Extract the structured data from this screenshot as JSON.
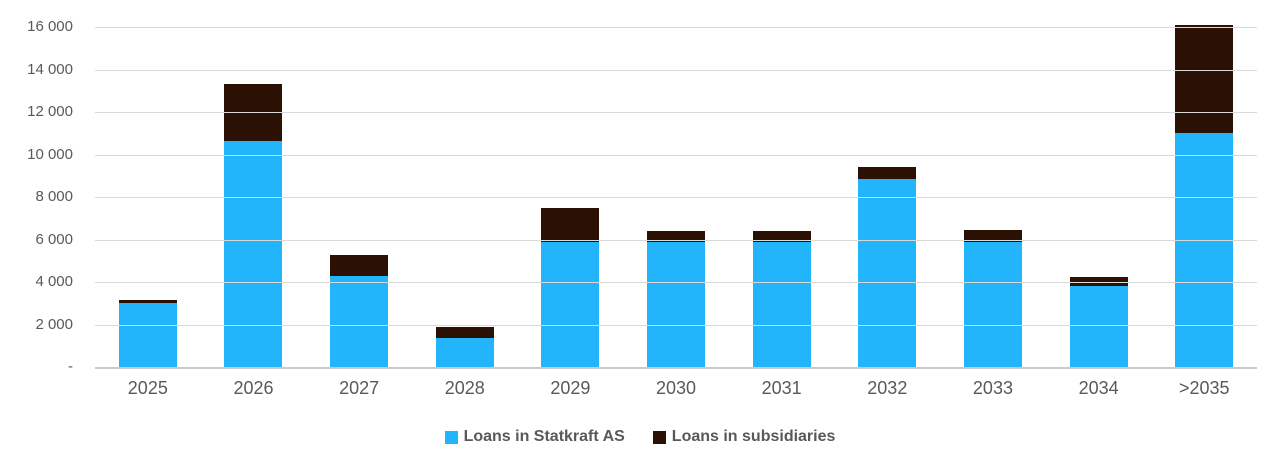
{
  "chart_data": {
    "type": "bar",
    "stacked": true,
    "title": "",
    "xlabel": "",
    "ylabel": "",
    "categories": [
      "2025",
      "2026",
      "2027",
      "2028",
      "2029",
      "2030",
      "2031",
      "2032",
      "2033",
      "2034",
      ">2035"
    ],
    "series": [
      {
        "name": "Loans in Statkraft AS",
        "color": "#22b5fc",
        "values": [
          3000,
          10650,
          4300,
          1350,
          5900,
          5900,
          5900,
          8850,
          5900,
          3800,
          11000
        ]
      },
      {
        "name": "Loans in subsidiaries",
        "color": "#2b1004",
        "values": [
          150,
          2650,
          950,
          550,
          1600,
          500,
          500,
          550,
          550,
          450,
          5100
        ]
      }
    ],
    "totals": [
      3150,
      13300,
      5250,
      1900,
      7500,
      6400,
      6400,
      9400,
      6450,
      4250,
      16100
    ],
    "ylim": [
      0,
      16000
    ],
    "ytick_step": 2000,
    "ytick_labels": [
      "-",
      "2 000",
      "4 000",
      "6 000",
      "8 000",
      "10 000",
      "12 000",
      "14 000",
      "16 000"
    ],
    "grid": true,
    "legend_position": "bottom"
  },
  "colors": {
    "background": "#ffffff",
    "gridline": "#d9d9d9",
    "axis_line": "#c9c9c9",
    "tick_label": "#595959",
    "legend_text": "#595959"
  }
}
